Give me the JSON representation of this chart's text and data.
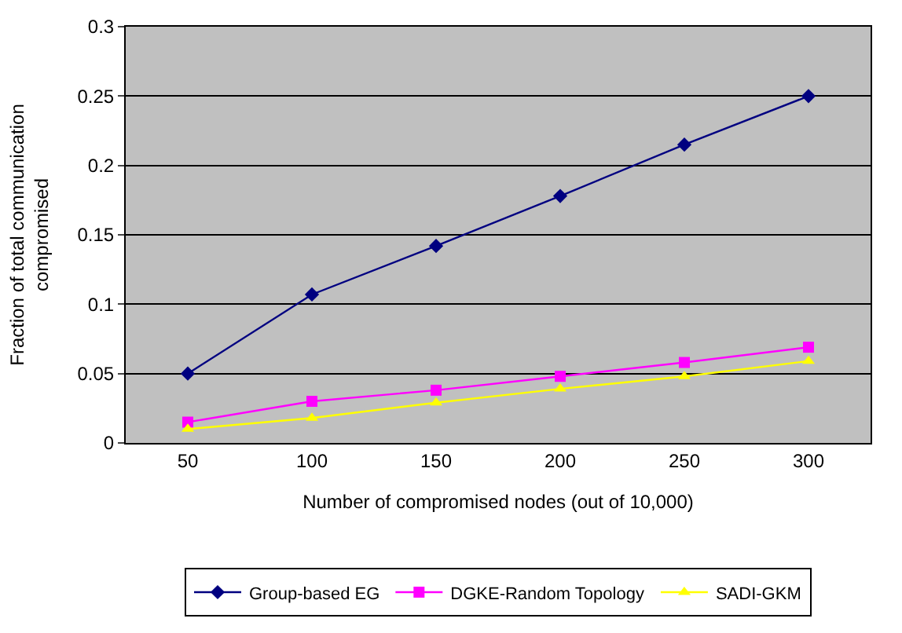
{
  "chart_data": {
    "type": "line",
    "xlabel": "Number of compromised nodes (out of 10,000)",
    "ylabel": "Fraction of total communication compromised",
    "categories": [
      "50",
      "100",
      "150",
      "200",
      "250",
      "300"
    ],
    "series": [
      {
        "name": "Group-based EG",
        "color": "#000080",
        "marker": "diamond",
        "values": [
          0.05,
          0.107,
          0.142,
          0.178,
          0.215,
          0.25
        ]
      },
      {
        "name": "DGKE-Random Topology",
        "color": "#ff00ff",
        "marker": "square",
        "values": [
          0.015,
          0.03,
          0.038,
          0.048,
          0.058,
          0.069
        ]
      },
      {
        "name": "SADI-GKM",
        "color": "#ffff00",
        "marker": "triangle",
        "values": [
          0.01,
          0.018,
          0.029,
          0.039,
          0.048,
          0.059
        ]
      }
    ],
    "ylim": [
      0,
      0.3
    ],
    "yticks": [
      0,
      0.05,
      0.1,
      0.15,
      0.2,
      0.25,
      0.3
    ],
    "grid": "y",
    "legend": "bottom"
  }
}
